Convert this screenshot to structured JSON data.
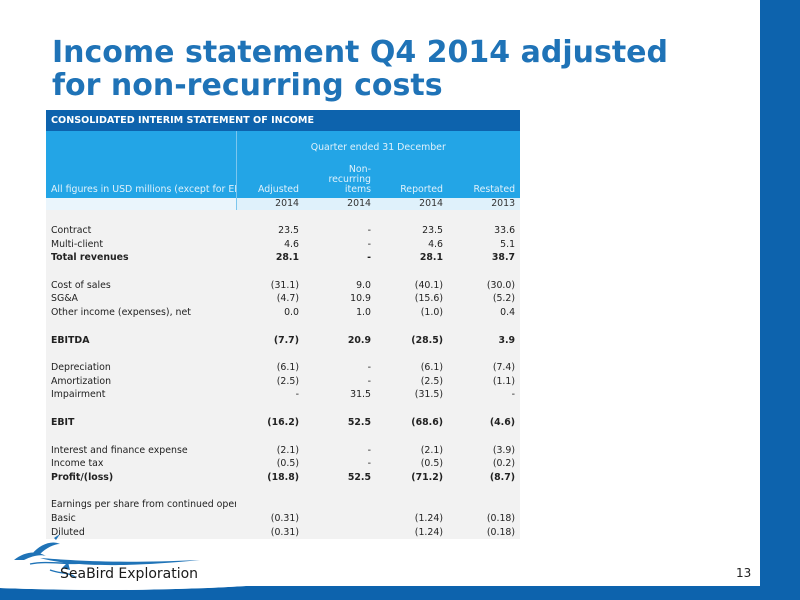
{
  "slide": {
    "title": "Income statement Q4 2014 adjusted\nfor non-recurring costs",
    "page_number": "13",
    "logo_text": "SeaBird Exploration",
    "colors": {
      "title": "#1f73b7",
      "swoosh": "#0d63ad",
      "table_caption_bg": "#0d63ad",
      "table_header_bg": "#23a5e6",
      "table_body_bg": "#f2f2f2"
    }
  },
  "table": {
    "caption": "CONSOLIDATED INTERIM STATEMENT OF INCOME",
    "period_label": "Quarter ended 31 December",
    "row_header": "All figures in USD millions (except for EPS)",
    "columns": [
      "Adjusted",
      "Non-recurring items",
      "Reported",
      "Restated"
    ],
    "years": [
      "2014",
      "2014",
      "2014",
      "2013"
    ],
    "rows": [
      {
        "label": "",
        "values": [
          "",
          "",
          "",
          ""
        ],
        "bold": false,
        "spacer": true
      },
      {
        "label": "Contract",
        "values": [
          "23.5",
          "-",
          "23.5",
          "33.6"
        ],
        "bold": false
      },
      {
        "label": "Multi-client",
        "values": [
          "4.6",
          "-",
          "4.6",
          "5.1"
        ],
        "bold": false
      },
      {
        "label": "Total revenues",
        "values": [
          "28.1",
          "-",
          "28.1",
          "38.7"
        ],
        "bold": true
      },
      {
        "label": "",
        "values": [
          "",
          "",
          "",
          ""
        ],
        "bold": false,
        "spacer": true
      },
      {
        "label": "Cost of sales",
        "values": [
          "(31.1)",
          "9.0",
          "(40.1)",
          "(30.0)"
        ],
        "bold": false
      },
      {
        "label": "SG&A",
        "values": [
          "(4.7)",
          "10.9",
          "(15.6)",
          "(5.2)"
        ],
        "bold": false
      },
      {
        "label": "Other income (expenses), net",
        "values": [
          "0.0",
          "1.0",
          "(1.0)",
          "0.4"
        ],
        "bold": false
      },
      {
        "label": "",
        "values": [
          "",
          "",
          "",
          ""
        ],
        "bold": false,
        "spacer": true
      },
      {
        "label": "EBITDA",
        "values": [
          "(7.7)",
          "20.9",
          "(28.5)",
          "3.9"
        ],
        "bold": true
      },
      {
        "label": "",
        "values": [
          "",
          "",
          "",
          ""
        ],
        "bold": false,
        "spacer": true
      },
      {
        "label": "Depreciation",
        "values": [
          "(6.1)",
          "-",
          "(6.1)",
          "(7.4)"
        ],
        "bold": false
      },
      {
        "label": "Amortization",
        "values": [
          "(2.5)",
          "-",
          "(2.5)",
          "(1.1)"
        ],
        "bold": false
      },
      {
        "label": "Impairment",
        "values": [
          "-",
          "31.5",
          "(31.5)",
          "-"
        ],
        "bold": false
      },
      {
        "label": "",
        "values": [
          "",
          "",
          "",
          ""
        ],
        "bold": false,
        "spacer": true
      },
      {
        "label": "EBIT",
        "values": [
          "(16.2)",
          "52.5",
          "(68.6)",
          "(4.6)"
        ],
        "bold": true
      },
      {
        "label": "",
        "values": [
          "",
          "",
          "",
          ""
        ],
        "bold": false,
        "spacer": true
      },
      {
        "label": "Interest and finance expense",
        "values": [
          "(2.1)",
          "-",
          "(2.1)",
          "(3.9)"
        ],
        "bold": false
      },
      {
        "label": "Income tax",
        "values": [
          "(0.5)",
          "-",
          "(0.5)",
          "(0.2)"
        ],
        "bold": false
      },
      {
        "label": "Profit/(loss)",
        "values": [
          "(18.8)",
          "52.5",
          "(71.2)",
          "(8.7)"
        ],
        "bold": true
      },
      {
        "label": "",
        "values": [
          "",
          "",
          "",
          ""
        ],
        "bold": false,
        "spacer": true
      },
      {
        "label": "Earnings per share from continued operations",
        "values": [
          "",
          "",
          "",
          ""
        ],
        "bold": false
      },
      {
        "label": "Basic",
        "values": [
          "(0.31)",
          "",
          "(1.24)",
          "(0.18)"
        ],
        "bold": false
      },
      {
        "label": "Diluted",
        "values": [
          "(0.31)",
          "",
          "(1.24)",
          "(0.18)"
        ],
        "bold": false
      }
    ]
  }
}
